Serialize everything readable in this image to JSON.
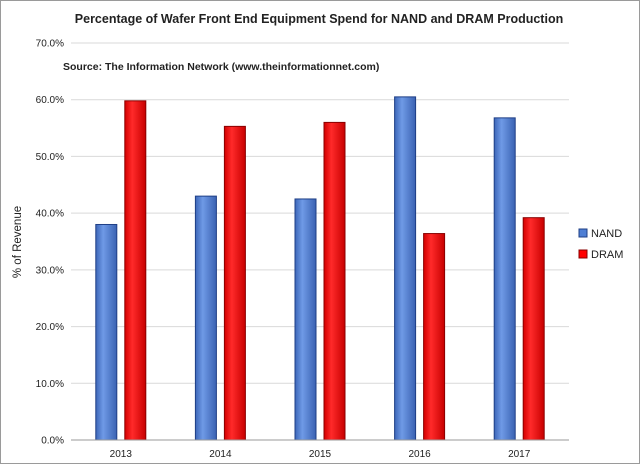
{
  "chart_data": {
    "type": "bar",
    "title": "Percentage of Wafer Front End Equipment Spend for NAND and DRAM Production",
    "annotation": "Source: The Information Network (www.theinformationnet.com)",
    "xlabel": "",
    "ylabel": "% of Revenue",
    "categories": [
      "2013",
      "2014",
      "2015",
      "2016",
      "2017"
    ],
    "series": [
      {
        "name": "NAND",
        "color": "#4f7fd4",
        "values": [
          38.0,
          43.0,
          42.5,
          60.5,
          56.8
        ]
      },
      {
        "name": "DRAM",
        "color": "#ff0000",
        "values": [
          59.8,
          55.3,
          56.0,
          36.4,
          39.2
        ]
      }
    ],
    "ylim": [
      0,
      70
    ],
    "yticks": [
      "0.0%",
      "10.0%",
      "20.0%",
      "30.0%",
      "40.0%",
      "50.0%",
      "60.0%",
      "70.0%"
    ],
    "grid": true,
    "legend_position": "right"
  }
}
